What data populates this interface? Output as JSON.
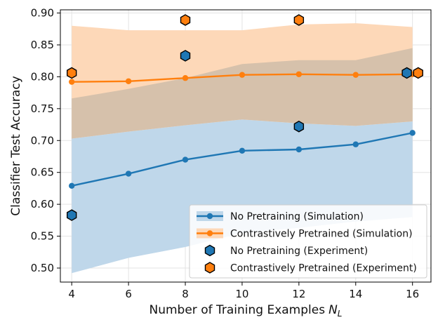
{
  "chart_data": {
    "type": "line",
    "title": "",
    "xlabel": "Number of Training Examples",
    "xlabel_sym": "N",
    "xlabel_sub": "L",
    "ylabel": "Classifier Test Accuracy",
    "xlim": [
      3.6,
      16.65
    ],
    "ylim": [
      0.478,
      0.905
    ],
    "xticks": [
      4,
      6,
      8,
      10,
      12,
      14,
      16
    ],
    "yticks": [
      0.5,
      0.55,
      0.6,
      0.65,
      0.7,
      0.75,
      0.8,
      0.85,
      0.9
    ],
    "grid": true,
    "legend_position": "bottom-right",
    "series": [
      {
        "name": "No Pretraining (Simulation)",
        "kind": "line",
        "color": "#1f77b4",
        "x": [
          4,
          6,
          8,
          10,
          12,
          14,
          16
        ],
        "values": [
          0.629,
          0.648,
          0.67,
          0.684,
          0.686,
          0.694,
          0.712
        ],
        "band_lower": [
          0.492,
          0.516,
          0.533,
          0.555,
          0.563,
          0.573,
          0.58
        ],
        "band_upper": [
          0.703,
          0.714,
          0.724,
          0.733,
          0.727,
          0.723,
          0.73
        ]
      },
      {
        "name": "Contrastively Pretrained (Simulation)",
        "kind": "line",
        "color": "#ff7f0e",
        "x": [
          4,
          6,
          8,
          10,
          12,
          14,
          16
        ],
        "values": [
          0.792,
          0.793,
          0.798,
          0.803,
          0.804,
          0.803,
          0.804
        ],
        "band_lower": [
          0.703,
          0.714,
          0.724,
          0.733,
          0.727,
          0.723,
          0.73
        ],
        "band_upper": [
          0.88,
          0.873,
          0.873,
          0.873,
          0.882,
          0.884,
          0.878
        ]
      },
      {
        "name": "No Pretraining (Experiment)",
        "kind": "marker",
        "color": "#1f77b4",
        "x": [
          4,
          8,
          12,
          15.8
        ],
        "values": [
          0.583,
          0.833,
          0.722,
          0.806
        ]
      },
      {
        "name": "Contrastively Pretrained (Experiment)",
        "kind": "marker",
        "color": "#ff7f0e",
        "x": [
          4,
          8,
          12,
          16.2
        ],
        "values": [
          0.806,
          0.889,
          0.889,
          0.806
        ]
      }
    ],
    "band_overlap": {
      "lower": [
        0.703,
        0.714,
        0.724,
        0.733,
        0.727,
        0.723,
        0.73
      ],
      "upper": [
        0.766,
        0.781,
        0.798,
        0.82,
        0.826,
        0.826,
        0.845
      ]
    }
  }
}
